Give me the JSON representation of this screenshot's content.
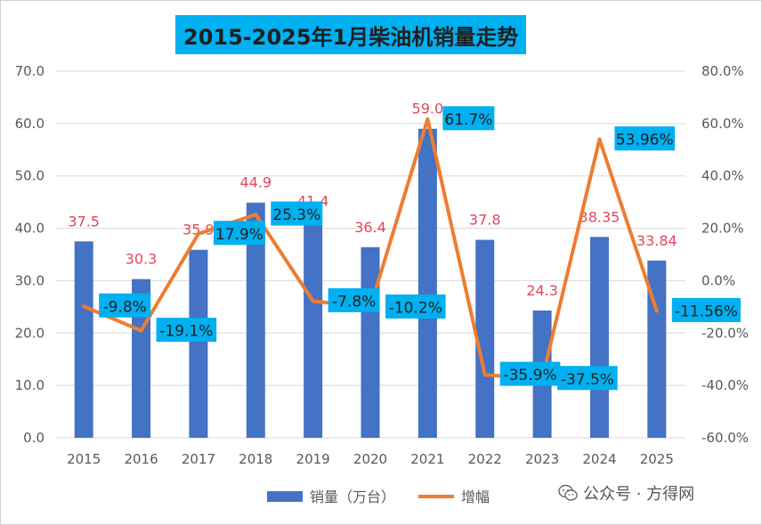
{
  "chart_data": {
    "type": "bar",
    "title": "2015-2025年1月柴油机销量走势",
    "categories": [
      "2015",
      "2016",
      "2017",
      "2018",
      "2019",
      "2020",
      "2021",
      "2022",
      "2023",
      "2024",
      "2025"
    ],
    "series": [
      {
        "name": "销量（万台）",
        "type": "bar",
        "axis": "left",
        "color": "#4472c4",
        "values": [
          37.5,
          30.3,
          35.9,
          44.9,
          41.4,
          36.4,
          59.0,
          37.8,
          24.3,
          38.35,
          33.84
        ],
        "labels": [
          "37.5",
          "30.3",
          "35.9",
          "44.9",
          "41.4",
          "36.4",
          "59.0",
          "37.8",
          "24.3",
          "38.35",
          "33.84"
        ]
      },
      {
        "name": "增幅",
        "type": "line",
        "axis": "right",
        "color": "#ed7d31",
        "values": [
          -9.8,
          -19.1,
          17.9,
          25.3,
          -7.8,
          -10.2,
          61.7,
          -35.9,
          -37.5,
          53.96,
          -11.56
        ],
        "labels": [
          "-9.8%",
          "-19.1%",
          "17.9%",
          "25.3%",
          "-7.8%",
          "-10.2%",
          "61.7%",
          "-35.9%",
          "-37.5%",
          "53.96%",
          "-11.56%"
        ]
      }
    ],
    "y_left": {
      "min": 0,
      "max": 70,
      "step": 10,
      "ticks": [
        "0.0",
        "10.0",
        "20.0",
        "30.0",
        "40.0",
        "50.0",
        "60.0",
        "70.0"
      ]
    },
    "y_right": {
      "min": -60,
      "max": 80,
      "step": 20,
      "ticks": [
        "-60.0%",
        "-40.0%",
        "-20.0%",
        "0.0%",
        "20.0%",
        "40.0%",
        "60.0%",
        "80.0%"
      ]
    },
    "grid": true,
    "legend_position": "bottom",
    "bar_label_color": "#e0475b",
    "line_label_bg": "#00b0f0"
  },
  "watermark": {
    "text": "公众号 · 方得网",
    "icon": "wechat-icon"
  }
}
